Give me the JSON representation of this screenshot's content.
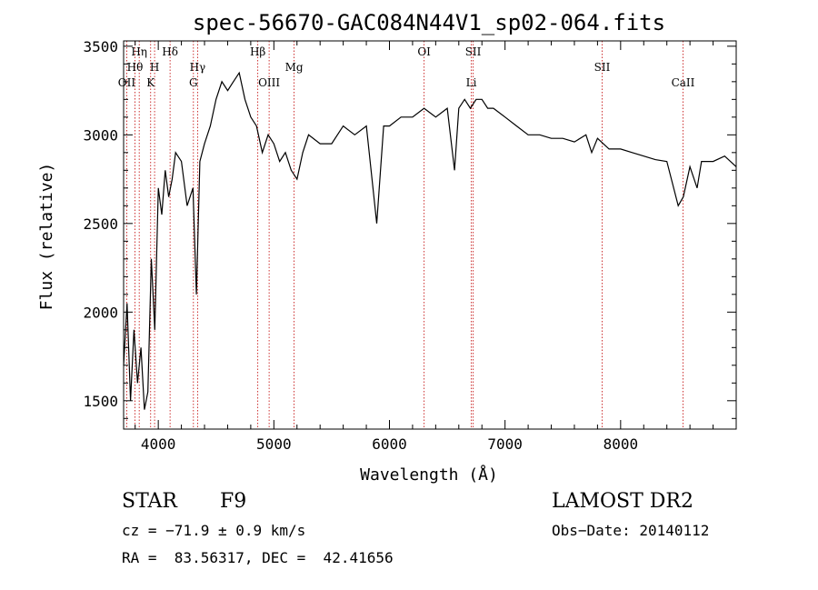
{
  "chart_data": {
    "type": "line",
    "title": "spec-56670-GAC084N44V1_sp02-064.fits",
    "xlabel": "Wavelength (Å)",
    "ylabel": "Flux (relative)",
    "xlim": [
      3700,
      9000
    ],
    "ylim": [
      1340,
      3530
    ],
    "xticks": [
      4000,
      5000,
      6000,
      7000,
      8000
    ],
    "yticks": [
      1500,
      2000,
      2500,
      3000,
      3500
    ],
    "grid": false,
    "series": [
      {
        "x": [
          3700,
          3730,
          3760,
          3790,
          3820,
          3850,
          3880,
          3910,
          3940,
          3970,
          4000,
          4030,
          4060,
          4090,
          4120,
          4150,
          4200,
          4250,
          4300,
          4330,
          4360,
          4400,
          4450,
          4500,
          4550,
          4600,
          4650,
          4700,
          4750,
          4800,
          4850,
          4900,
          4950,
          5000,
          5050,
          5100,
          5150,
          5200,
          5250,
          5300,
          5400,
          5500,
          5600,
          5700,
          5800,
          5890,
          5950,
          6000,
          6100,
          6200,
          6300,
          6400,
          6500,
          6563,
          6600,
          6650,
          6700,
          6750,
          6800,
          6850,
          6900,
          7000,
          7100,
          7200,
          7300,
          7400,
          7500,
          7600,
          7700,
          7750,
          7800,
          7900,
          8000,
          8100,
          8200,
          8300,
          8400,
          8498,
          8542,
          8600,
          8662,
          8700,
          8800,
          8900,
          9000
        ],
        "y": [
          1700,
          2050,
          1500,
          1900,
          1600,
          1800,
          1450,
          1550,
          2300,
          1900,
          2700,
          2550,
          2800,
          2650,
          2750,
          2900,
          2850,
          2600,
          2700,
          2100,
          2850,
          2950,
          3050,
          3200,
          3300,
          3250,
          3300,
          3350,
          3200,
          3100,
          3050,
          2900,
          3000,
          2950,
          2850,
          2900,
          2800,
          2750,
          2900,
          3000,
          2950,
          2950,
          3050,
          3000,
          3050,
          2500,
          3050,
          3050,
          3100,
          3100,
          3150,
          3100,
          3150,
          2800,
          3150,
          3200,
          3150,
          3200,
          3200,
          3150,
          3150,
          3100,
          3050,
          3000,
          3000,
          2980,
          2980,
          2960,
          3000,
          2900,
          2980,
          2920,
          2920,
          2900,
          2880,
          2860,
          2850,
          2600,
          2650,
          2820,
          2700,
          2850,
          2850,
          2880,
          2820
        ]
      }
    ],
    "annotations": [
      {
        "label": "Hη",
        "x": 3835,
        "row": 1
      },
      {
        "label": "Hθ",
        "x": 3798,
        "row": 2
      },
      {
        "label": "OII",
        "x": 3727,
        "row": 3
      },
      {
        "label": "Hδ",
        "x": 4102,
        "row": 1
      },
      {
        "label": "H",
        "x": 3968,
        "row": 2
      },
      {
        "label": "K",
        "x": 3934,
        "row": 3
      },
      {
        "label": "Hγ",
        "x": 4340,
        "row": 2
      },
      {
        "label": "G",
        "x": 4304,
        "row": 3
      },
      {
        "label": "Hβ",
        "x": 4861,
        "row": 1
      },
      {
        "label": "OIII",
        "x": 4959,
        "row": 3
      },
      {
        "label": "Mg",
        "x": 5175,
        "row": 2
      },
      {
        "label": "OI",
        "x": 6300,
        "row": 1
      },
      {
        "label": "SII",
        "x": 6724,
        "row": 1
      },
      {
        "label": "Li",
        "x": 6708,
        "row": 3
      },
      {
        "label": "SII",
        "x": 7840,
        "row": 2
      },
      {
        "label": "CaII",
        "x": 8540,
        "row": 3
      }
    ]
  },
  "info": {
    "class_label": "STAR",
    "subclass": "F9",
    "survey": "LAMOST DR2",
    "cz": "cz = −71.9 ± 0.9 km/s",
    "obs_date": "Obs−Date: 20140112",
    "coords": "RA =  83.56317, DEC =  42.41656"
  }
}
